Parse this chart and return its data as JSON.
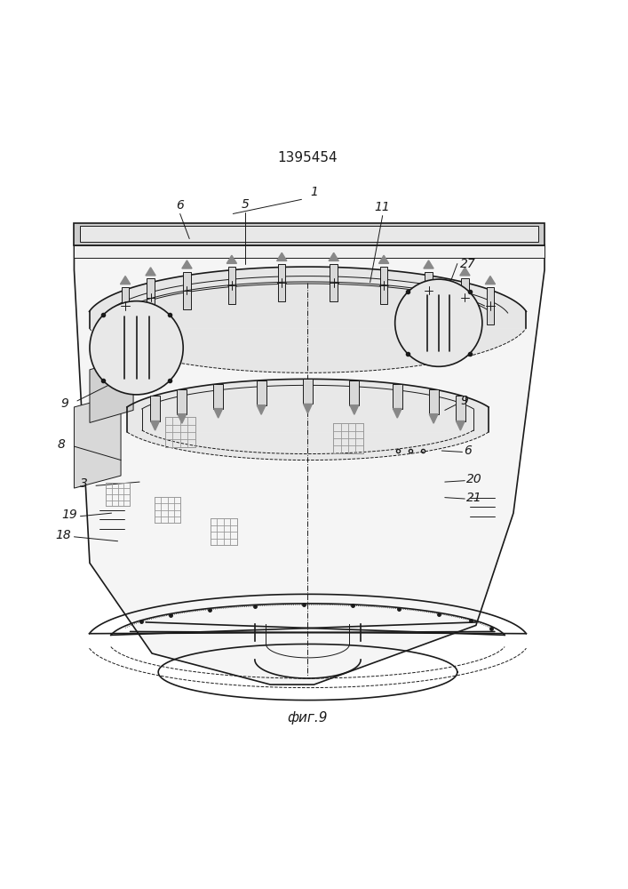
{
  "title": "1395454",
  "caption": "фиг.9",
  "bg_color": "#ffffff",
  "line_color": "#1a1a1a",
  "fill_light": "#e8e8e8",
  "fill_medium": "#d0d0d0",
  "fill_dark": "#b0b0b0"
}
